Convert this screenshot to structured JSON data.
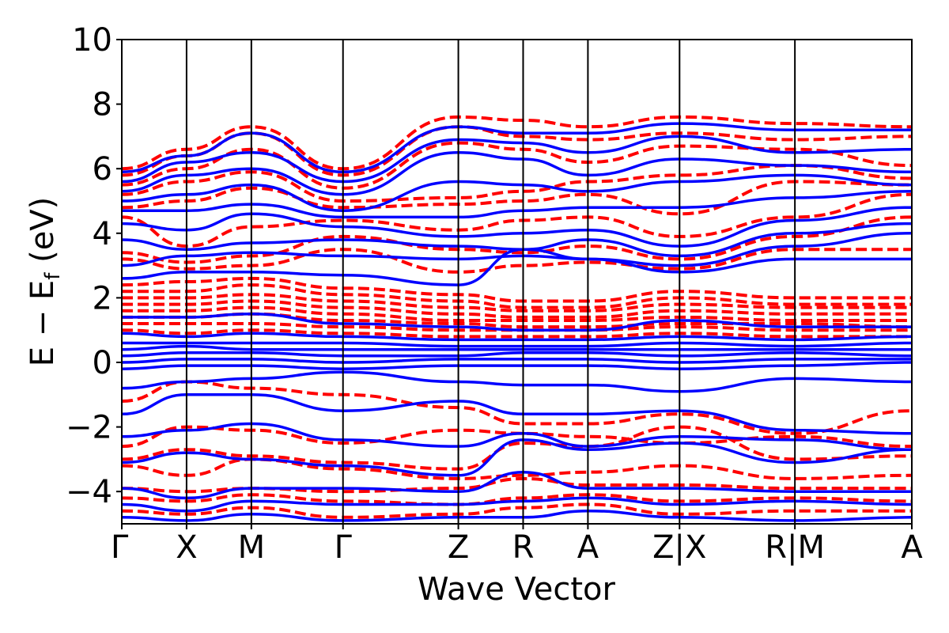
{
  "chart_data": {
    "type": "line",
    "title": "",
    "xlabel": "Wave Vector",
    "ylabel_main": "E − E",
    "ylabel_sub": "f",
    "ylabel_unit": " (eV)",
    "ylim": [
      -5,
      10
    ],
    "yticks": [
      -4,
      -2,
      0,
      2,
      4,
      6,
      8,
      10
    ],
    "ytick_labels": [
      "−4",
      "−2",
      "0",
      "2",
      "4",
      "6",
      "8",
      "10"
    ],
    "xlim": [
      0,
      100
    ],
    "kpoints": [
      {
        "pos": 0,
        "label": "Γ"
      },
      {
        "pos": 8.2,
        "label": "X"
      },
      {
        "pos": 16.4,
        "label": "M"
      },
      {
        "pos": 28.0,
        "label": "Γ"
      },
      {
        "pos": 42.6,
        "label": "Z"
      },
      {
        "pos": 50.8,
        "label": "R"
      },
      {
        "pos": 59.0,
        "label": "A"
      },
      {
        "pos": 70.6,
        "label": "Z|X"
      },
      {
        "pos": 85.2,
        "label": "R|M"
      },
      {
        "pos": 100,
        "label": "A"
      }
    ],
    "grid": false,
    "legend": "none",
    "series": [
      {
        "style": "dashed",
        "color": "#ff0000",
        "x": [
          0,
          8.2,
          16.4,
          28.0,
          42.6,
          50.8,
          59.0,
          70.6,
          85.2,
          100
        ],
        "bands": [
          [
            6.0,
            6.6,
            7.3,
            6.0,
            7.6,
            7.5,
            7.3,
            7.6,
            7.4,
            7.3
          ],
          [
            5.8,
            6.4,
            7.1,
            5.8,
            7.3,
            7.0,
            6.9,
            7.1,
            6.9,
            7.0
          ],
          [
            5.5,
            6.0,
            6.6,
            5.4,
            6.8,
            6.6,
            6.2,
            6.7,
            6.6,
            6.1
          ],
          [
            5.2,
            5.6,
            5.9,
            5.0,
            5.1,
            5.3,
            5.6,
            5.8,
            6.1,
            5.7
          ],
          [
            4.8,
            5.0,
            5.4,
            4.8,
            4.9,
            5.0,
            5.2,
            4.6,
            5.6,
            5.5
          ],
          [
            4.5,
            3.6,
            4.2,
            4.4,
            4.1,
            4.4,
            4.5,
            3.9,
            4.5,
            5.2
          ],
          [
            3.4,
            3.1,
            3.3,
            3.9,
            3.5,
            3.4,
            3.6,
            3.2,
            3.9,
            4.5
          ],
          [
            3.2,
            2.9,
            3.0,
            3.5,
            2.8,
            3.0,
            3.1,
            2.9,
            3.5,
            3.5
          ],
          [
            2.4,
            2.5,
            2.6,
            2.3,
            2.1,
            1.9,
            1.9,
            2.2,
            2.0,
            2.0
          ],
          [
            2.2,
            2.2,
            2.4,
            2.1,
            1.9,
            1.7,
            1.7,
            2.0,
            1.8,
            1.8
          ],
          [
            2.0,
            2.0,
            2.1,
            1.9,
            1.7,
            1.6,
            1.6,
            1.8,
            1.7,
            1.7
          ],
          [
            1.8,
            1.8,
            1.9,
            1.7,
            1.5,
            1.4,
            1.4,
            1.6,
            1.5,
            1.5
          ],
          [
            1.6,
            1.6,
            1.7,
            1.5,
            1.3,
            1.3,
            1.3,
            1.4,
            1.3,
            1.3
          ],
          [
            1.4,
            1.4,
            1.5,
            1.3,
            1.2,
            1.1,
            1.1,
            1.2,
            1.2,
            1.1
          ],
          [
            1.2,
            1.2,
            1.2,
            1.1,
            1.0,
            1.0,
            1.0,
            1.1,
            1.0,
            1.0
          ],
          [
            1.0,
            0.9,
            1.0,
            0.9,
            0.8,
            0.8,
            0.8,
            0.9,
            0.8,
            0.8
          ],
          [
            -1.2,
            -0.6,
            -0.8,
            -1.0,
            -1.4,
            -1.9,
            -1.9,
            -1.6,
            -2.2,
            -1.5
          ],
          [
            -2.6,
            -2.0,
            -2.1,
            -2.5,
            -2.1,
            -2.2,
            -2.3,
            -2.5,
            -2.3,
            -2.6
          ],
          [
            -3.0,
            -2.7,
            -2.9,
            -3.1,
            -3.3,
            -2.5,
            -2.6,
            -2.0,
            -3.0,
            -2.9
          ],
          [
            -3.2,
            -3.5,
            -3.0,
            -3.3,
            -3.6,
            -3.5,
            -3.4,
            -3.2,
            -3.6,
            -3.5
          ],
          [
            -3.9,
            -4.0,
            -3.9,
            -4.0,
            -3.9,
            -3.6,
            -3.8,
            -3.8,
            -3.9,
            -3.9
          ],
          [
            -4.2,
            -4.3,
            -4.1,
            -4.3,
            -4.4,
            -4.2,
            -4.1,
            -4.3,
            -4.2,
            -4.3
          ],
          [
            -4.6,
            -4.7,
            -4.5,
            -4.8,
            -4.7,
            -4.5,
            -4.4,
            -4.7,
            -4.6,
            -4.6
          ]
        ]
      },
      {
        "style": "solid",
        "color": "#0000ff",
        "x": [
          0,
          8.2,
          16.4,
          28.0,
          42.6,
          50.8,
          59.0,
          70.6,
          85.2,
          100
        ],
        "bands": [
          [
            5.9,
            6.4,
            7.1,
            5.9,
            7.3,
            7.1,
            7.1,
            7.4,
            7.2,
            7.2
          ],
          [
            5.6,
            6.2,
            6.5,
            5.6,
            6.9,
            6.8,
            6.5,
            7.0,
            6.5,
            6.6
          ],
          [
            5.3,
            5.8,
            6.0,
            5.2,
            6.5,
            6.3,
            5.8,
            6.3,
            6.1,
            5.9
          ],
          [
            5.0,
            5.2,
            5.5,
            4.7,
            5.6,
            5.5,
            5.3,
            5.6,
            5.8,
            5.5
          ],
          [
            4.7,
            4.7,
            4.9,
            4.5,
            4.5,
            4.7,
            4.8,
            4.8,
            5.1,
            5.3
          ],
          [
            4.3,
            4.1,
            4.6,
            4.2,
            3.9,
            4.0,
            4.1,
            3.6,
            4.4,
            4.8
          ],
          [
            3.8,
            3.5,
            3.7,
            3.8,
            3.6,
            3.5,
            3.8,
            3.3,
            4.0,
            4.3
          ],
          [
            3.0,
            3.3,
            3.4,
            3.3,
            3.2,
            3.3,
            3.2,
            3.0,
            3.6,
            4.0
          ],
          [
            2.6,
            2.8,
            2.8,
            2.7,
            2.4,
            3.5,
            3.2,
            2.8,
            3.2,
            3.2
          ],
          [
            1.4,
            1.4,
            1.5,
            1.2,
            1.1,
            1.0,
            1.0,
            1.3,
            1.1,
            1.1
          ],
          [
            0.9,
            0.8,
            0.9,
            0.8,
            0.7,
            0.7,
            0.7,
            0.8,
            0.7,
            0.8
          ],
          [
            0.6,
            0.6,
            0.6,
            0.6,
            0.5,
            0.5,
            0.5,
            0.6,
            0.5,
            0.6
          ],
          [
            0.4,
            0.5,
            0.4,
            0.4,
            0.4,
            0.4,
            0.4,
            0.4,
            0.4,
            0.4
          ],
          [
            0.2,
            0.3,
            0.3,
            0.2,
            0.2,
            0.3,
            0.3,
            0.2,
            0.3,
            0.2
          ],
          [
            0.0,
            0.1,
            0.1,
            0.0,
            0.1,
            0.1,
            0.1,
            0.0,
            0.1,
            0.1
          ],
          [
            -0.2,
            -0.1,
            -0.1,
            -0.2,
            -0.1,
            -0.1,
            -0.1,
            -0.2,
            -0.1,
            0.0
          ],
          [
            -0.8,
            -0.6,
            -0.5,
            -0.3,
            -0.6,
            -0.7,
            -0.7,
            -0.9,
            -0.5,
            -0.6
          ],
          [
            -1.6,
            -1.0,
            -1.0,
            -1.5,
            -1.2,
            -1.6,
            -1.6,
            -1.5,
            -2.1,
            -2.2
          ],
          [
            -2.3,
            -2.1,
            -1.9,
            -2.4,
            -2.6,
            -2.2,
            -2.6,
            -2.3,
            -2.4,
            -2.7
          ],
          [
            -3.1,
            -2.8,
            -3.0,
            -3.2,
            -3.5,
            -2.4,
            -2.7,
            -2.5,
            -3.1,
            -2.7
          ],
          [
            -3.9,
            -4.2,
            -3.9,
            -3.9,
            -4.0,
            -3.4,
            -3.9,
            -3.9,
            -4.0,
            -4.0
          ],
          [
            -4.4,
            -4.6,
            -4.3,
            -4.4,
            -4.4,
            -4.3,
            -4.2,
            -4.4,
            -4.3,
            -4.4
          ],
          [
            -4.8,
            -4.9,
            -4.7,
            -4.9,
            -4.8,
            -4.8,
            -4.6,
            -4.8,
            -4.9,
            -4.8
          ]
        ]
      }
    ]
  }
}
